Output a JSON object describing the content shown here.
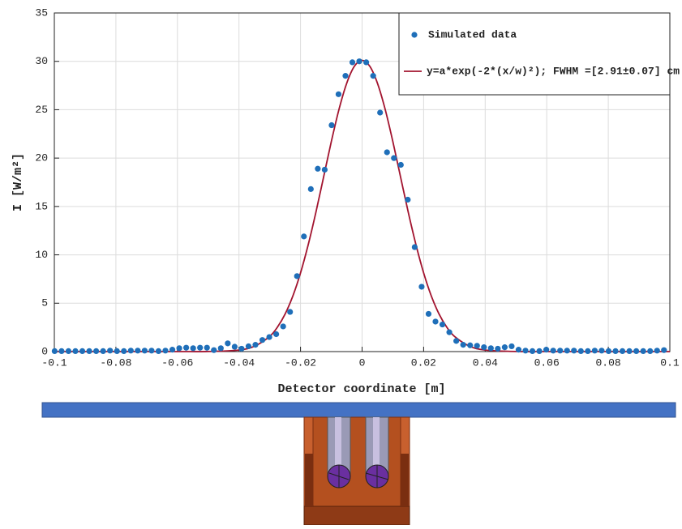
{
  "chart_data": {
    "type": "scatter",
    "xlabel": "Detector coordinate [m]",
    "ylabel": "I [W/m²]",
    "xlim": [
      -0.1,
      0.1
    ],
    "ylim": [
      0,
      35
    ],
    "xticks": [
      -0.1,
      -0.08,
      -0.06,
      -0.04,
      -0.02,
      0,
      0.02,
      0.04,
      0.06,
      0.08,
      0.1
    ],
    "yticks": [
      0,
      5,
      10,
      15,
      20,
      25,
      30,
      35
    ],
    "grid": true,
    "legend": "upper right",
    "series": [
      {
        "name": "Simulated data",
        "type": "scatter",
        "color": "#1f6fb9",
        "x": [
          -0.0999,
          -0.09765,
          -0.0954,
          -0.09315,
          -0.0909,
          -0.08865,
          -0.0864,
          -0.08415,
          -0.0819,
          -0.07965,
          -0.0774,
          -0.07515,
          -0.0729,
          -0.07065,
          -0.0684,
          -0.06615,
          -0.0639,
          -0.06165,
          -0.0594,
          -0.05715,
          -0.0549,
          -0.05265,
          -0.0504,
          -0.04815,
          -0.0459,
          -0.04365,
          -0.0414,
          -0.03915,
          -0.0369,
          -0.03465,
          -0.0324,
          -0.03015,
          -0.0279,
          -0.02565,
          -0.0234,
          -0.02115,
          -0.0189,
          -0.01665,
          -0.0144,
          -0.01215,
          -0.0099,
          -0.00765,
          -0.0054,
          -0.00315,
          -0.0009,
          0.00135,
          0.0036,
          0.00585,
          0.0081,
          0.01035,
          0.0126,
          0.01485,
          0.0171,
          0.01935,
          0.0216,
          0.02385,
          0.0261,
          0.02835,
          0.0306,
          0.03285,
          0.0351,
          0.03735,
          0.0396,
          0.04185,
          0.0441,
          0.04635,
          0.0486,
          0.05085,
          0.0531,
          0.05535,
          0.0576,
          0.05985,
          0.0621,
          0.06435,
          0.0666,
          0.06885,
          0.0711,
          0.07335,
          0.0756,
          0.07785,
          0.0801,
          0.08235,
          0.0846,
          0.08685,
          0.0891,
          0.09135,
          0.0936,
          0.09585,
          0.0981
        ],
        "values": [
          0.05,
          0.05,
          0.05,
          0.05,
          0.05,
          0.05,
          0.05,
          0.05,
          0.1,
          0.05,
          0.05,
          0.1,
          0.1,
          0.1,
          0.1,
          0.05,
          0.1,
          0.2,
          0.35,
          0.4,
          0.35,
          0.4,
          0.4,
          0.15,
          0.35,
          0.85,
          0.5,
          0.3,
          0.55,
          0.7,
          1.2,
          1.5,
          1.8,
          2.6,
          4.1,
          7.8,
          11.9,
          16.8,
          18.9,
          18.8,
          23.4,
          26.6,
          28.5,
          29.9,
          30,
          29.9,
          28.5,
          24.7,
          20.6,
          20,
          19.3,
          15.7,
          10.8,
          6.7,
          3.9,
          3.1,
          2.8,
          2,
          1.1,
          0.7,
          0.65,
          0.6,
          0.45,
          0.35,
          0.3,
          0.45,
          0.55,
          0.2,
          0.1,
          0.05,
          0.05,
          0.2,
          0.1,
          0.1,
          0.1,
          0.1,
          0.05,
          0.05,
          0.1,
          0.1,
          0.05,
          0.05,
          0.05,
          0.05,
          0.05,
          0.05,
          0.05,
          0.1,
          0.15
        ]
      },
      {
        "name": "y=a*exp(-2*(x/w)²); FWHM =[2.91±0.07] cm",
        "type": "line",
        "color": "#a2142f",
        "x": [
          -0.1,
          -0.08,
          -0.06,
          -0.05,
          -0.04,
          -0.035,
          -0.03,
          -0.0275,
          -0.025,
          -0.0225,
          -0.02,
          -0.0175,
          -0.015,
          -0.0125,
          -0.01,
          -0.0075,
          -0.005,
          -0.0025,
          0,
          0.0025,
          0.005,
          0.0075,
          0.01,
          0.0125,
          0.015,
          0.0175,
          0.02,
          0.0225,
          0.025,
          0.0275,
          0.03,
          0.035,
          0.04,
          0.05,
          0.06,
          0.08,
          0.1
        ],
        "values": [
          0,
          0,
          0,
          0.01,
          0.16,
          0.55,
          1.58,
          2.53,
          3.89,
          5.74,
          8.13,
          11.05,
          14.41,
          18.05,
          21.7,
          25.04,
          27.73,
          29.49,
          30.1,
          29.49,
          27.73,
          25.04,
          21.7,
          18.05,
          14.41,
          11.05,
          8.13,
          5.74,
          3.89,
          2.53,
          1.58,
          0.55,
          0.16,
          0.01,
          0,
          0,
          0
        ]
      }
    ]
  }
}
